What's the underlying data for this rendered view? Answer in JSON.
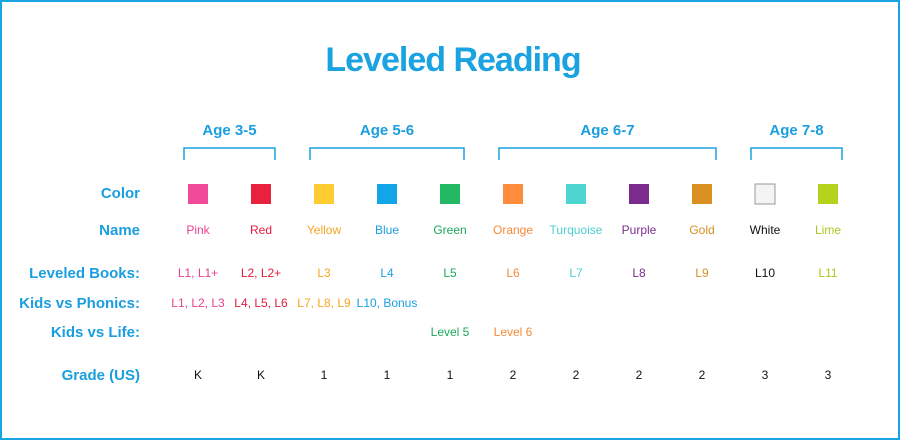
{
  "title": "Leveled Reading",
  "row_labels": [
    "Color",
    "Name",
    "Leveled Books:",
    "Kids vs Phonics:",
    "Kids vs Life:",
    "Grade (US)"
  ],
  "age_groups": [
    {
      "label": "Age 3-5",
      "columns": [
        {
          "name": "Pink",
          "color": "#f24a9a",
          "text_color": "#e8408f",
          "books": "L1, L1+",
          "phonics": "L1, L2, L3",
          "life": null,
          "grade": "K"
        },
        {
          "name": "Red",
          "color": "#e8213f",
          "text_color": "#e31b3b",
          "books": "L2, L2+",
          "phonics": "L4, L5, L6",
          "life": null,
          "grade": "K"
        }
      ]
    },
    {
      "label": "Age 5-6",
      "columns": [
        {
          "name": "Yellow",
          "color": "#ffcc33",
          "text_color": "#f5a623",
          "books": "L3",
          "phonics": "L7, L8, L9",
          "life": null,
          "grade": 1
        },
        {
          "name": "Blue",
          "color": "#12a5e8",
          "text_color": "#1a9ee0",
          "books": "L4",
          "phonics": "L10, Bonus",
          "life": null,
          "grade": 1
        },
        {
          "name": "Green",
          "color": "#22b864",
          "text_color": "#1aa85a",
          "books": "L5",
          "phonics": null,
          "life": "Level 5",
          "grade": 1
        }
      ]
    },
    {
      "label": "Age 6-7",
      "columns": [
        {
          "name": "Orange",
          "color": "#ff8c3a",
          "text_color": "#f5893a",
          "books": "L6",
          "phonics": null,
          "life": "Level 6",
          "grade": 2
        },
        {
          "name": "Turquoise",
          "color": "#4dd4d0",
          "text_color": "#4ccfcf",
          "books": "L7",
          "phonics": null,
          "life": null,
          "grade": 2
        },
        {
          "name": "Purple",
          "color": "#7b2a8e",
          "text_color": "#7b2d8e",
          "books": "L8",
          "phonics": null,
          "life": null,
          "grade": 2
        },
        {
          "name": "Gold",
          "color": "#d99020",
          "text_color": "#d4901e",
          "books": "L9",
          "phonics": null,
          "life": null,
          "grade": 2
        }
      ]
    },
    {
      "label": "Age 7-8",
      "columns": [
        {
          "name": "White",
          "color": "#f4f4f4",
          "text_color": "#111111",
          "books": "L10",
          "phonics": null,
          "life": null,
          "grade": 3
        },
        {
          "name": "Lime",
          "color": "#b5d31e",
          "text_color": "#a6c81e",
          "books": "L11",
          "phonics": null,
          "life": null,
          "grade": 3
        }
      ]
    }
  ]
}
